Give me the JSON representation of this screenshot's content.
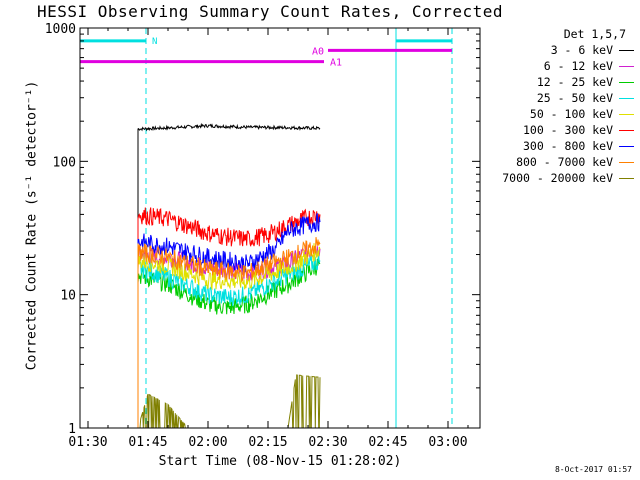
{
  "chart_data": {
    "type": "line",
    "title": "HESSI Observing Summary Count Rates, Corrected",
    "xlabel": "Start Time (08-Nov-15 01:28:02)",
    "ylabel": "Corrected Count Rate (s⁻¹ detector⁻¹)",
    "yscale": "log",
    "ylim": [
      1,
      1000
    ],
    "xlim_minutes": [
      -2,
      98
    ],
    "x_tick_labels": [
      "01:30",
      "01:45",
      "02:00",
      "02:15",
      "02:30",
      "02:45",
      "03:00"
    ],
    "x_tick_minutes": [
      0,
      15,
      30,
      45,
      60,
      75,
      90
    ],
    "y_tick_labels": [
      "1",
      "10",
      "100",
      "1000"
    ],
    "y_tick_values": [
      1,
      10,
      100,
      1000
    ],
    "legend_header": "Det 1,5,7",
    "legend_position": "right",
    "series": [
      {
        "name": "3 - 6 keV",
        "color": "#000000",
        "points": [
          [
            12.5,
            175
          ],
          [
            20,
            178
          ],
          [
            30,
            185
          ],
          [
            40,
            180
          ],
          [
            50,
            179
          ],
          [
            58,
            177
          ]
        ]
      },
      {
        "name": "6 - 12 keV",
        "color": "#d020d0",
        "points": [
          [
            12.5,
            20
          ],
          [
            20,
            19
          ],
          [
            30,
            16
          ],
          [
            40,
            14.5
          ],
          [
            50,
            17
          ],
          [
            55,
            21
          ],
          [
            58,
            22
          ]
        ]
      },
      {
        "name": "12 - 25 keV",
        "color": "#00cc00",
        "points": [
          [
            12.5,
            14
          ],
          [
            20,
            12
          ],
          [
            30,
            8.5
          ],
          [
            35,
            8
          ],
          [
            40,
            8.5
          ],
          [
            50,
            12
          ],
          [
            58,
            17
          ]
        ]
      },
      {
        "name": "25 - 50 keV",
        "color": "#00e0e0",
        "points": [
          [
            12.5,
            16
          ],
          [
            20,
            13.5
          ],
          [
            30,
            10
          ],
          [
            35,
            9.5
          ],
          [
            40,
            10
          ],
          [
            50,
            14
          ],
          [
            58,
            18
          ]
        ]
      },
      {
        "name": "50 - 100 keV",
        "color": "#e0e000",
        "points": [
          [
            12.5,
            18
          ],
          [
            20,
            16.5
          ],
          [
            30,
            13
          ],
          [
            40,
            12.5
          ],
          [
            50,
            16
          ],
          [
            58,
            22
          ]
        ]
      },
      {
        "name": "100 - 300 keV",
        "color": "#ff0000",
        "points": [
          [
            12.5,
            40
          ],
          [
            20,
            37
          ],
          [
            30,
            29
          ],
          [
            35,
            27
          ],
          [
            40,
            26
          ],
          [
            45,
            28
          ],
          [
            50,
            33
          ],
          [
            55,
            38
          ],
          [
            58,
            40
          ]
        ]
      },
      {
        "name": "300 - 800 keV",
        "color": "#0000ff",
        "points": [
          [
            12.5,
            25
          ],
          [
            20,
            23
          ],
          [
            30,
            19
          ],
          [
            40,
            17
          ],
          [
            47,
            22
          ],
          [
            50,
            30
          ],
          [
            55,
            34
          ],
          [
            58,
            35
          ]
        ]
      },
      {
        "name": "800 - 7000 keV",
        "color": "#ff8000",
        "points": [
          [
            12.5,
            21
          ],
          [
            20,
            19
          ],
          [
            30,
            15.5
          ],
          [
            40,
            14.5
          ],
          [
            50,
            19
          ],
          [
            58,
            24
          ]
        ]
      },
      {
        "name": "7000 - 20000 keV",
        "color": "#808000",
        "points": [
          [
            12.5,
            1
          ],
          [
            15,
            1.8
          ],
          [
            20,
            1.5
          ],
          [
            25,
            1
          ],
          [
            50,
            1
          ],
          [
            52,
            2.5
          ],
          [
            58,
            2.4
          ]
        ]
      }
    ],
    "overlays": {
      "night_bars": [
        {
          "label": "N",
          "start": -2,
          "end": 14.5,
          "level": 800,
          "color": "#00e0e0"
        },
        {
          "label": "",
          "start": 77,
          "end": 91,
          "level": 800,
          "color": "#00e0e0"
        }
      ],
      "attenuator_bars": [
        {
          "label": "A0",
          "start": 60,
          "end": 91,
          "level": 680,
          "color": "#e000e0"
        },
        {
          "label": "A1",
          "start": -2,
          "end": 59,
          "level": 560,
          "color": "#e000e0"
        }
      ],
      "vertical_lines": [
        {
          "minute": -2,
          "style": "solid",
          "color": "#00e0e0"
        },
        {
          "minute": 14.5,
          "style": "dashed",
          "color": "#00e0e0"
        },
        {
          "minute": 77,
          "style": "solid",
          "color": "#00e0e0"
        },
        {
          "minute": 91,
          "style": "dashed",
          "color": "#00e0e0"
        }
      ]
    }
  },
  "footer": {
    "stamp": "8-Oct-2017 01:57"
  }
}
